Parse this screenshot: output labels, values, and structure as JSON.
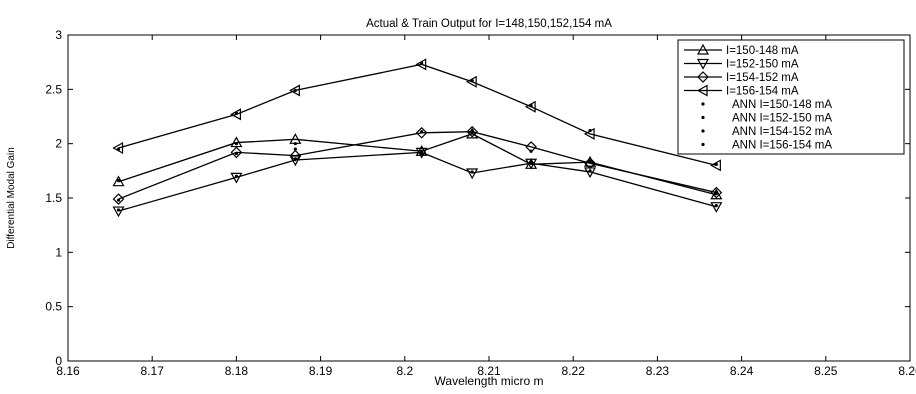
{
  "chart_data": {
    "type": "line",
    "title": "Actual & Train Output for I=148,150,152,154 mA",
    "xlabel": "Wavelength micro m",
    "ylabel": "Differential Modal Gain",
    "xlim": [
      8.16,
      8.26
    ],
    "ylim": [
      0,
      3
    ],
    "xticks": [
      "8.16",
      "8.17",
      "8.18",
      "8.19",
      "8.2",
      "8.21",
      "8.22",
      "8.23",
      "8.24",
      "8.25",
      "8.26"
    ],
    "yticks": [
      "0",
      "0.5",
      "1",
      "1.5",
      "2",
      "2.5",
      "3"
    ],
    "grid": false,
    "legend_position": "top-right",
    "x": [
      8.166,
      8.18,
      8.187,
      8.202,
      8.208,
      8.215,
      8.222,
      8.237
    ],
    "series": [
      {
        "name": "I=150-148 mA",
        "marker": "triangle-up",
        "line": true,
        "values": [
          1.65,
          2.01,
          2.04,
          1.93,
          2.09,
          1.81,
          1.83,
          1.53
        ]
      },
      {
        "name": "I=152-150 mA",
        "marker": "triangle-down",
        "line": true,
        "values": [
          1.38,
          1.69,
          1.85,
          1.92,
          1.73,
          1.82,
          1.74,
          1.42
        ]
      },
      {
        "name": "I=154-152 mA",
        "marker": "diamond",
        "line": true,
        "values": [
          1.49,
          1.92,
          1.89,
          2.1,
          2.11,
          1.97,
          1.82,
          1.55
        ]
      },
      {
        "name": "I=156-154 mA",
        "marker": "triangle-left",
        "line": true,
        "values": [
          1.96,
          2.27,
          2.49,
          2.73,
          2.57,
          2.34,
          2.09,
          1.8
        ]
      },
      {
        "name": "ANN I=150-148 mA",
        "marker": "dot",
        "line": false,
        "values": [
          1.66,
          2.0,
          2.0,
          1.93,
          2.1,
          1.83,
          1.84,
          1.54
        ]
      },
      {
        "name": "ANN I=152-150 mA",
        "marker": "dot",
        "line": false,
        "values": [
          1.39,
          1.7,
          1.86,
          1.91,
          1.74,
          1.83,
          1.75,
          1.43
        ]
      },
      {
        "name": "ANN I=154-152 mA",
        "marker": "dot",
        "line": false,
        "values": [
          1.48,
          1.91,
          1.95,
          2.11,
          2.12,
          1.93,
          1.83,
          1.55
        ]
      },
      {
        "name": "ANN I=156-154 mA",
        "marker": "dot",
        "line": false,
        "values": [
          1.95,
          2.28,
          2.49,
          2.74,
          2.58,
          2.35,
          2.12,
          1.81
        ]
      }
    ]
  }
}
